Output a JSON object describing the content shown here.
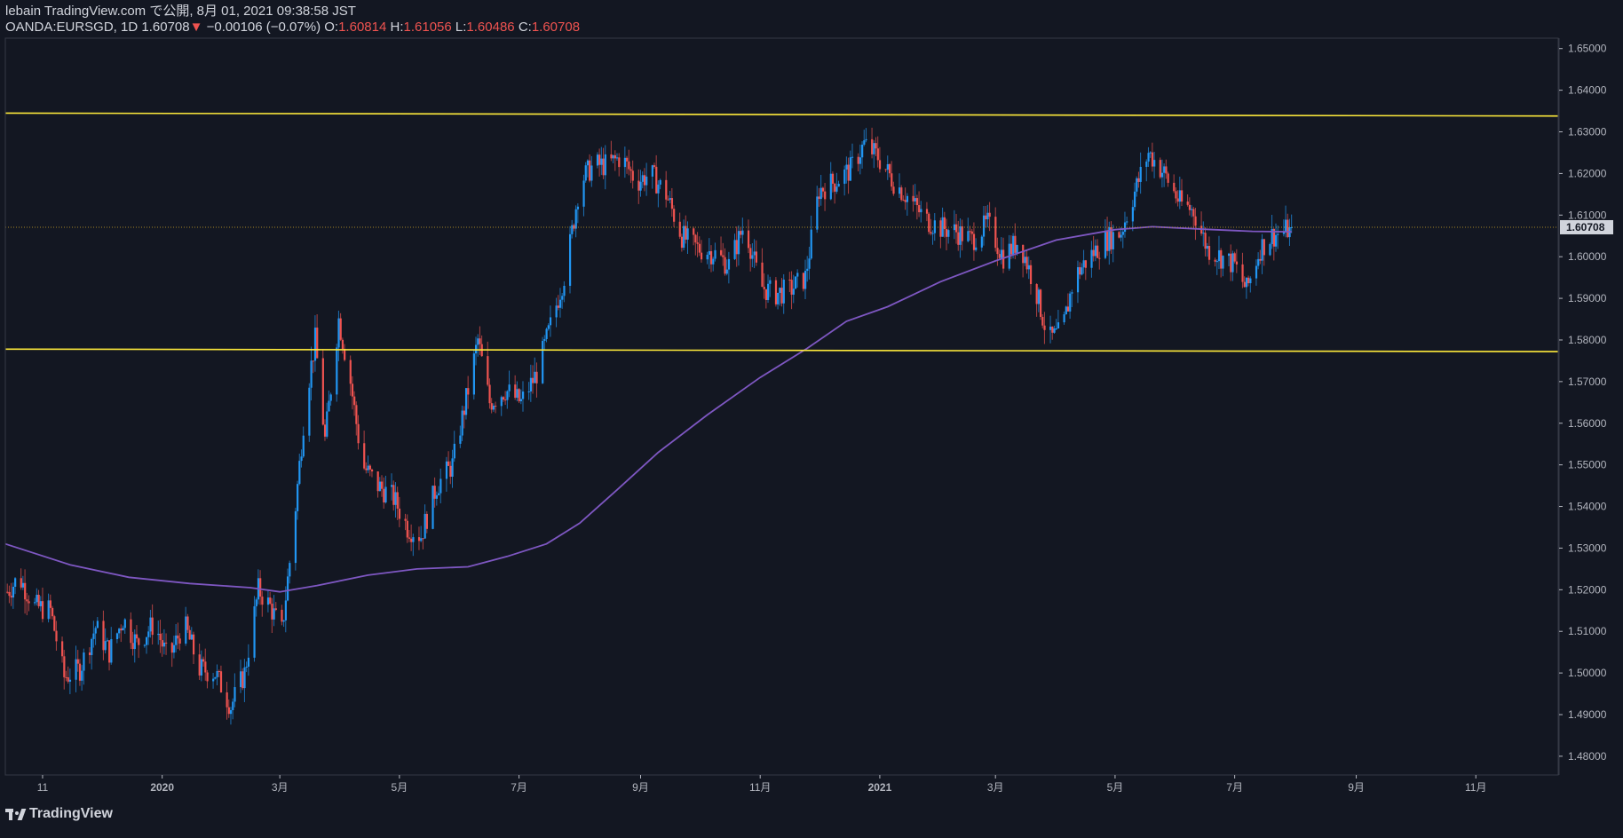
{
  "header": {
    "published": "lebain TradingView.com で公開, 8月 01, 2021 09:38:58 JST",
    "symbol": "OANDA:EURSGD, 1D",
    "last": "1.60708",
    "change_arrow": "▼",
    "change": "−0.00106 (−0.07%)",
    "o_label": "O:",
    "o_value": "1.60814",
    "h_label": "H:",
    "h_value": "1.61056",
    "l_label": "L:",
    "l_value": "1.60486",
    "c_label": "C:",
    "c_value": "1.60708"
  },
  "footer": {
    "brand": "TradingView"
  },
  "colors": {
    "background": "#131722",
    "up": "#2196f3",
    "down": "#ef5350",
    "ma": "#7e57c2",
    "level": "#ffeb3b",
    "grid_text": "#b2b5be",
    "axis_line": "#363a45"
  },
  "chart_data": {
    "type": "candlestick",
    "title": "",
    "xlabel": "",
    "ylabel": "",
    "ylim": [
      1.4755,
      1.6525
    ],
    "y_ticks": [
      "1.65000",
      "1.64000",
      "1.63000",
      "1.62000",
      "1.61000",
      "1.60000",
      "1.59000",
      "1.58000",
      "1.57000",
      "1.56000",
      "1.55000",
      "1.54000",
      "1.53000",
      "1.52000",
      "1.51000",
      "1.50000",
      "1.49000",
      "1.48000"
    ],
    "x_ticks": [
      {
        "label": "11",
        "date": "2019-11-01"
      },
      {
        "label": "2020",
        "date": "2020-01-01"
      },
      {
        "label": "3月",
        "date": "2020-03-01"
      },
      {
        "label": "5月",
        "date": "2020-05-01"
      },
      {
        "label": "7月",
        "date": "2020-07-01"
      },
      {
        "label": "9月",
        "date": "2020-09-01"
      },
      {
        "label": "11月",
        "date": "2020-11-01"
      },
      {
        "label": "2021",
        "date": "2021-01-01"
      },
      {
        "label": "3月",
        "date": "2021-03-01"
      },
      {
        "label": "5月",
        "date": "2021-05-01"
      },
      {
        "label": "7月",
        "date": "2021-07-01"
      },
      {
        "label": "9月",
        "date": "2021-09-01"
      },
      {
        "label": "11月",
        "date": "2021-11-01"
      }
    ],
    "x_range": [
      "2019-10-13",
      "2021-12-13"
    ],
    "last_price": 1.60708,
    "last_price_label": "1.60708",
    "horizontal_levels": [
      {
        "y_start": 1.6345,
        "y_end": 1.6338
      },
      {
        "y_start": 1.5778,
        "y_end": 1.5772
      }
    ],
    "close_path": [
      [
        "2019-10-14",
        1.5195
      ],
      [
        "2019-10-20",
        1.523
      ],
      [
        "2019-10-28",
        1.516
      ],
      [
        "2019-11-05",
        1.515
      ],
      [
        "2019-11-12",
        1.499
      ],
      [
        "2019-11-20",
        1.501
      ],
      [
        "2019-11-28",
        1.511
      ],
      [
        "2019-12-05",
        1.505
      ],
      [
        "2019-12-12",
        1.513
      ],
      [
        "2019-12-19",
        1.507
      ],
      [
        "2019-12-28",
        1.512
      ],
      [
        "2020-01-04",
        1.503
      ],
      [
        "2020-01-12",
        1.512
      ],
      [
        "2020-01-20",
        1.501
      ],
      [
        "2020-01-28",
        1.5
      ],
      [
        "2020-02-05",
        1.492
      ],
      [
        "2020-02-12",
        1.5
      ],
      [
        "2020-02-19",
        1.52
      ],
      [
        "2020-02-25",
        1.516
      ],
      [
        "2020-03-02",
        1.51
      ],
      [
        "2020-03-08",
        1.535
      ],
      [
        "2020-03-14",
        1.565
      ],
      [
        "2020-03-19",
        1.58
      ],
      [
        "2020-03-24",
        1.556
      ],
      [
        "2020-03-31",
        1.585
      ],
      [
        "2020-04-06",
        1.57
      ],
      [
        "2020-04-12",
        1.55
      ],
      [
        "2020-04-20",
        1.545
      ],
      [
        "2020-04-28",
        1.542
      ],
      [
        "2020-05-05",
        1.535
      ],
      [
        "2020-05-12",
        1.533
      ],
      [
        "2020-05-20",
        1.545
      ],
      [
        "2020-05-28",
        1.55
      ],
      [
        "2020-06-05",
        1.568
      ],
      [
        "2020-06-10",
        1.58
      ],
      [
        "2020-06-16",
        1.565
      ],
      [
        "2020-06-24",
        1.568
      ],
      [
        "2020-07-02",
        1.565
      ],
      [
        "2020-07-10",
        1.572
      ],
      [
        "2020-07-18",
        1.585
      ],
      [
        "2020-07-25",
        1.597
      ],
      [
        "2020-08-01",
        1.618
      ],
      [
        "2020-08-08",
        1.622
      ],
      [
        "2020-08-15",
        1.622
      ],
      [
        "2020-08-22",
        1.624
      ],
      [
        "2020-08-30",
        1.618
      ],
      [
        "2020-09-06",
        1.62
      ],
      [
        "2020-09-14",
        1.615
      ],
      [
        "2020-09-22",
        1.605
      ],
      [
        "2020-09-30",
        1.602
      ],
      [
        "2020-10-08",
        1.601
      ],
      [
        "2020-10-16",
        1.598
      ],
      [
        "2020-10-24",
        1.608
      ],
      [
        "2020-11-01",
        1.593
      ],
      [
        "2020-11-08",
        1.591
      ],
      [
        "2020-11-16",
        1.592
      ],
      [
        "2020-11-24",
        1.595
      ],
      [
        "2020-12-01",
        1.616
      ],
      [
        "2020-12-09",
        1.618
      ],
      [
        "2020-12-17",
        1.621
      ],
      [
        "2020-12-24",
        1.627
      ],
      [
        "2020-12-31",
        1.624
      ],
      [
        "2021-01-08",
        1.618
      ],
      [
        "2021-01-16",
        1.614
      ],
      [
        "2021-01-24",
        1.609
      ],
      [
        "2021-02-01",
        1.607
      ],
      [
        "2021-02-09",
        1.606
      ],
      [
        "2021-02-17",
        1.604
      ],
      [
        "2021-02-25",
        1.608
      ],
      [
        "2021-03-05",
        1.6
      ],
      [
        "2021-03-13",
        1.604
      ],
      [
        "2021-03-21",
        1.593
      ],
      [
        "2021-03-28",
        1.58
      ],
      [
        "2021-04-04",
        1.582
      ],
      [
        "2021-04-10",
        1.595
      ],
      [
        "2021-04-18",
        1.6
      ],
      [
        "2021-04-26",
        1.604
      ],
      [
        "2021-05-04",
        1.606
      ],
      [
        "2021-05-12",
        1.617
      ],
      [
        "2021-05-18",
        1.625
      ],
      [
        "2021-05-26",
        1.62
      ],
      [
        "2021-06-03",
        1.613
      ],
      [
        "2021-06-10",
        1.611
      ],
      [
        "2021-06-17",
        1.602
      ],
      [
        "2021-06-24",
        1.6
      ],
      [
        "2021-07-01",
        1.598
      ],
      [
        "2021-07-07",
        1.592
      ],
      [
        "2021-07-14",
        1.602
      ],
      [
        "2021-07-20",
        1.605
      ],
      [
        "2021-07-26",
        1.606
      ],
      [
        "2021-07-30",
        1.6071
      ]
    ],
    "ma_path": [
      [
        "2019-10-13",
        1.531
      ],
      [
        "2019-11-15",
        1.526
      ],
      [
        "2019-12-15",
        1.523
      ],
      [
        "2020-01-15",
        1.5215
      ],
      [
        "2020-02-15",
        1.5205
      ],
      [
        "2020-03-01",
        1.5195
      ],
      [
        "2020-03-20",
        1.521
      ],
      [
        "2020-04-15",
        1.5235
      ],
      [
        "2020-05-10",
        1.525
      ],
      [
        "2020-06-05",
        1.5255
      ],
      [
        "2020-06-25",
        1.528
      ],
      [
        "2020-07-15",
        1.531
      ],
      [
        "2020-08-01",
        1.536
      ],
      [
        "2020-08-20",
        1.544
      ],
      [
        "2020-09-10",
        1.553
      ],
      [
        "2020-10-05",
        1.562
      ],
      [
        "2020-11-01",
        1.571
      ],
      [
        "2020-11-25",
        1.578
      ],
      [
        "2020-12-15",
        1.5845
      ],
      [
        "2021-01-05",
        1.588
      ],
      [
        "2021-02-01",
        1.594
      ],
      [
        "2021-03-01",
        1.599
      ],
      [
        "2021-04-01",
        1.604
      ],
      [
        "2021-05-01",
        1.6065
      ],
      [
        "2021-05-20",
        1.6072
      ],
      [
        "2021-06-15",
        1.6066
      ],
      [
        "2021-07-10",
        1.6061
      ],
      [
        "2021-07-30",
        1.606
      ]
    ]
  }
}
